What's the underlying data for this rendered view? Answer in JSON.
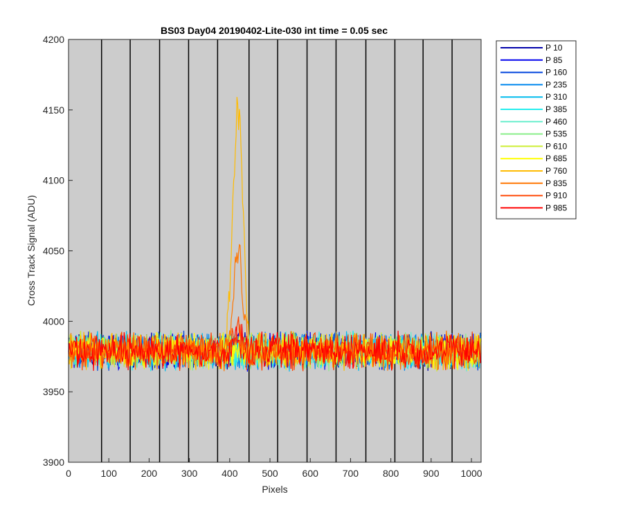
{
  "chart_data": {
    "type": "line",
    "title": "BS03 Day04 20190402-Lite-030 int time = 0.05 sec",
    "xlabel": "Pixels",
    "ylabel": "Cross Track Signal (ADU)",
    "xlim": [
      0,
      1024
    ],
    "ylim": [
      3900,
      4200
    ],
    "xticks": [
      0,
      100,
      200,
      300,
      400,
      500,
      600,
      700,
      800,
      900,
      1000
    ],
    "yticks": [
      3900,
      3950,
      4000,
      4050,
      4100,
      4150,
      4200
    ],
    "vertical_lines_x": [
      82,
      153,
      226,
      298,
      370,
      448,
      519,
      592,
      664,
      738,
      810,
      880,
      952
    ],
    "background_color": "#cccccc",
    "legend_position": "outside-right",
    "baseline": 3979,
    "noise_halfwidth": 15,
    "series": [
      {
        "name": "P 10",
        "color": "#0000aa",
        "peak": 0,
        "peak_center": 420,
        "peak_width": 40
      },
      {
        "name": "P 85",
        "color": "#0000ee",
        "peak": 0,
        "peak_center": 420,
        "peak_width": 40
      },
      {
        "name": "P 160",
        "color": "#0044dd",
        "peak": 0,
        "peak_center": 420,
        "peak_width": 40
      },
      {
        "name": "P 235",
        "color": "#0088ee",
        "peak": 0,
        "peak_center": 420,
        "peak_width": 40
      },
      {
        "name": "P 310",
        "color": "#00bbee",
        "peak": 0,
        "peak_center": 420,
        "peak_width": 40
      },
      {
        "name": "P 385",
        "color": "#22eeee",
        "peak": 0,
        "peak_center": 420,
        "peak_width": 40
      },
      {
        "name": "P 460",
        "color": "#66eecc",
        "peak": 0,
        "peak_center": 420,
        "peak_width": 40
      },
      {
        "name": "P 535",
        "color": "#88ee88",
        "peak": 0,
        "peak_center": 420,
        "peak_width": 40
      },
      {
        "name": "P 610",
        "color": "#ccee33",
        "peak": 0,
        "peak_center": 420,
        "peak_width": 40
      },
      {
        "name": "P 685",
        "color": "#ffff00",
        "peak": 0,
        "peak_center": 420,
        "peak_width": 40
      },
      {
        "name": "P 760",
        "color": "#ffbb00",
        "peak": 175,
        "peak_center": 420,
        "peak_width": 45
      },
      {
        "name": "P 835",
        "color": "#ff7700",
        "peak": 70,
        "peak_center": 420,
        "peak_width": 40
      },
      {
        "name": "P 910",
        "color": "#ff4400",
        "peak": 18,
        "peak_center": 420,
        "peak_width": 35
      },
      {
        "name": "P 985",
        "color": "#ff0000",
        "peak": 8,
        "peak_center": 420,
        "peak_width": 35
      }
    ]
  }
}
